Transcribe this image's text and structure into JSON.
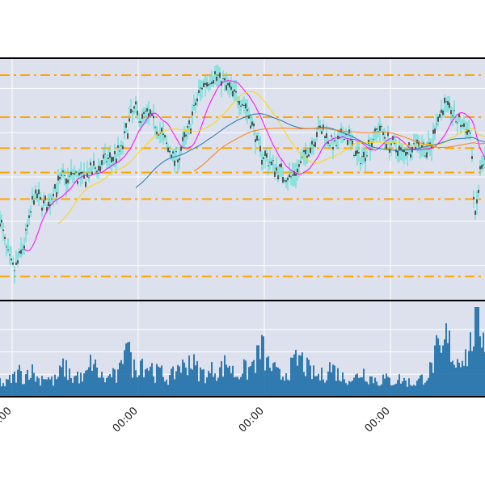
{
  "chart_data": [
    {
      "type": "candlestick",
      "title": "",
      "xlabel": "",
      "ylabel": "",
      "x_tick_labels": [
        "00:00",
        "00:00",
        "00:00",
        "00:00"
      ],
      "x_range": [
        0,
        100
      ],
      "x_ticks": [
        0,
        26,
        52,
        78
      ],
      "y_range": [
        0,
        100
      ],
      "grid": true,
      "background": "#dce1ed",
      "horizontal_levels": [
        96,
        77,
        63,
        52,
        40,
        5
      ],
      "level_color": "#ffa500",
      "close_points": [
        [
          0,
          32
        ],
        [
          1,
          20
        ],
        [
          2,
          12
        ],
        [
          3,
          8
        ],
        [
          4,
          14
        ],
        [
          5,
          20
        ],
        [
          6,
          30
        ],
        [
          7,
          42
        ],
        [
          8,
          40
        ],
        [
          9,
          38
        ],
        [
          10,
          36
        ],
        [
          11,
          44
        ],
        [
          12,
          46
        ],
        [
          13,
          50
        ],
        [
          14,
          48
        ],
        [
          15,
          52
        ],
        [
          16,
          50
        ],
        [
          17,
          49
        ],
        [
          18,
          51
        ],
        [
          19,
          53
        ],
        [
          20,
          54
        ],
        [
          21,
          56
        ],
        [
          22,
          58
        ],
        [
          23,
          57
        ],
        [
          24,
          60
        ],
        [
          25,
          62
        ],
        [
          26,
          70
        ],
        [
          27,
          78
        ],
        [
          28,
          80
        ],
        [
          29,
          76
        ],
        [
          30,
          78
        ],
        [
          31,
          77
        ],
        [
          32,
          74
        ],
        [
          33,
          70
        ],
        [
          34,
          66
        ],
        [
          35,
          62
        ],
        [
          36,
          58
        ],
        [
          37,
          60
        ],
        [
          38,
          66
        ],
        [
          39,
          72
        ],
        [
          40,
          80
        ],
        [
          41,
          88
        ],
        [
          42,
          92
        ],
        [
          43,
          94
        ],
        [
          44,
          96
        ],
        [
          45,
          95
        ],
        [
          46,
          93
        ],
        [
          47,
          90
        ],
        [
          48,
          88
        ],
        [
          49,
          86
        ],
        [
          50,
          84
        ],
        [
          51,
          80
        ],
        [
          52,
          74
        ],
        [
          53,
          66
        ],
        [
          54,
          60
        ],
        [
          55,
          58
        ],
        [
          56,
          56
        ],
        [
          57,
          54
        ],
        [
          58,
          52
        ],
        [
          59,
          50
        ],
        [
          60,
          50
        ],
        [
          61,
          52
        ],
        [
          62,
          56
        ],
        [
          63,
          60
        ],
        [
          64,
          64
        ],
        [
          65,
          68
        ],
        [
          66,
          72
        ],
        [
          67,
          70
        ],
        [
          68,
          66
        ],
        [
          69,
          64
        ],
        [
          70,
          66
        ],
        [
          71,
          70
        ],
        [
          72,
          68
        ],
        [
          73,
          62
        ],
        [
          74,
          58
        ],
        [
          75,
          60
        ],
        [
          76,
          64
        ],
        [
          77,
          68
        ],
        [
          78,
          72
        ],
        [
          79,
          70
        ],
        [
          80,
          66
        ],
        [
          81,
          64
        ],
        [
          82,
          62
        ],
        [
          83,
          60
        ],
        [
          84,
          62
        ],
        [
          85,
          64
        ],
        [
          86,
          66
        ],
        [
          87,
          64
        ],
        [
          88,
          62
        ],
        [
          89,
          64
        ],
        [
          90,
          76
        ],
        [
          91,
          80
        ],
        [
          92,
          82
        ],
        [
          93,
          80
        ],
        [
          94,
          76
        ],
        [
          95,
          74
        ],
        [
          96,
          72
        ],
        [
          97,
          70
        ],
        [
          98,
          30
        ],
        [
          99,
          52
        ],
        [
          100,
          56
        ]
      ],
      "series": [
        {
          "name": "",
          "color": "#ff00ff",
          "period": 5
        },
        {
          "name": "",
          "color": "#ffd700",
          "period": 12
        },
        {
          "name": "",
          "color": "#1f77b4",
          "period": 28
        },
        {
          "name": "",
          "color": "#ff7f0e",
          "period": 40
        }
      ],
      "price_color": "#333333",
      "wick_color": "#40e0d0"
    },
    {
      "type": "bar",
      "title": "",
      "xlabel": "",
      "ylabel": "",
      "x_range": [
        0,
        100
      ],
      "y_range": [
        0,
        100
      ],
      "bar_color": "#1f6fa8",
      "values_by_x": [
        [
          0,
          18
        ],
        [
          1,
          14
        ],
        [
          2,
          20
        ],
        [
          3,
          24
        ],
        [
          4,
          30
        ],
        [
          5,
          22
        ],
        [
          6,
          34
        ],
        [
          7,
          28
        ],
        [
          8,
          20
        ],
        [
          9,
          26
        ],
        [
          10,
          22
        ],
        [
          11,
          18
        ],
        [
          12,
          24
        ],
        [
          13,
          36
        ],
        [
          14,
          30
        ],
        [
          15,
          22
        ],
        [
          16,
          26
        ],
        [
          17,
          20
        ],
        [
          18,
          28
        ],
        [
          19,
          44
        ],
        [
          20,
          30
        ],
        [
          21,
          24
        ],
        [
          22,
          20
        ],
        [
          23,
          28
        ],
        [
          24,
          22
        ],
        [
          25,
          34
        ],
        [
          26,
          92
        ],
        [
          27,
          40
        ],
        [
          28,
          32
        ],
        [
          29,
          46
        ],
        [
          30,
          36
        ],
        [
          31,
          38
        ],
        [
          32,
          28
        ],
        [
          33,
          30
        ],
        [
          34,
          24
        ],
        [
          35,
          22
        ],
        [
          36,
          28
        ],
        [
          37,
          40
        ],
        [
          38,
          34
        ],
        [
          39,
          46
        ],
        [
          40,
          38
        ],
        [
          41,
          30
        ],
        [
          42,
          28
        ],
        [
          43,
          26
        ],
        [
          44,
          34
        ],
        [
          45,
          30
        ],
        [
          46,
          36
        ],
        [
          47,
          42
        ],
        [
          48,
          30
        ],
        [
          49,
          26
        ],
        [
          50,
          34
        ],
        [
          51,
          30
        ],
        [
          52,
          38
        ],
        [
          53,
          46
        ],
        [
          54,
          60
        ],
        [
          55,
          40
        ],
        [
          56,
          36
        ],
        [
          57,
          28
        ],
        [
          58,
          24
        ],
        [
          59,
          30
        ],
        [
          60,
          34
        ],
        [
          61,
          42
        ],
        [
          62,
          46
        ],
        [
          63,
          36
        ],
        [
          64,
          30
        ],
        [
          65,
          26
        ],
        [
          66,
          24
        ],
        [
          67,
          28
        ],
        [
          68,
          36
        ],
        [
          69,
          32
        ],
        [
          70,
          26
        ],
        [
          71,
          22
        ],
        [
          72,
          24
        ],
        [
          73,
          20
        ],
        [
          74,
          28
        ],
        [
          75,
          30
        ],
        [
          76,
          24
        ],
        [
          77,
          22
        ],
        [
          78,
          18
        ],
        [
          79,
          22
        ],
        [
          80,
          20
        ],
        [
          81,
          18
        ],
        [
          82,
          22
        ],
        [
          83,
          20
        ],
        [
          84,
          18
        ],
        [
          85,
          16
        ],
        [
          86,
          18
        ],
        [
          87,
          22
        ],
        [
          88,
          26
        ],
        [
          89,
          34
        ],
        [
          90,
          54
        ],
        [
          91,
          46
        ],
        [
          92,
          70
        ],
        [
          93,
          58
        ],
        [
          94,
          40
        ],
        [
          95,
          54
        ],
        [
          96,
          48
        ],
        [
          97,
          60
        ],
        [
          98,
          94
        ],
        [
          99,
          84
        ],
        [
          100,
          76
        ]
      ]
    }
  ]
}
